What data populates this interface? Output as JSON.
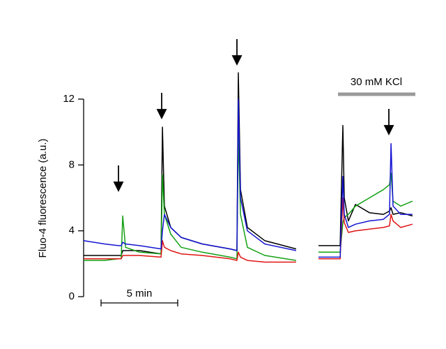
{
  "chart_data": {
    "type": "line",
    "y_label": "Fluo-4 fluorescence (a.u.)",
    "annotations": [
      "30 mM KCl",
      "5 min"
    ],
    "x": [
      0,
      1.36,
      2.27,
      2.45,
      2.55,
      2.73,
      3.64,
      5.05,
      5.14,
      5.27,
      5.68,
      6.36,
      7.73,
      9.55,
      10.0,
      10.09,
      10.23,
      10.68,
      11.82,
      13.86,
      14.6,
      15.32,
      16.73,
      16.91,
      17.0,
      17.27,
      17.73,
      18.64,
      19.55,
      19.95,
      20.05,
      20.18,
      20.68,
      21.45
    ],
    "series": [
      {
        "color": "#000000",
        "values": [
          2.5,
          2.5,
          2.5,
          2.5,
          2.8,
          2.8,
          2.8,
          2.6,
          10.3,
          5.5,
          4.2,
          3.6,
          3.2,
          2.9,
          2.8,
          13.6,
          6.5,
          4.2,
          3.4,
          2.9,
          null,
          3.1,
          3.1,
          10.4,
          6.0,
          4.6,
          5.6,
          5.1,
          5.0,
          5.2,
          5.4,
          5.0,
          5.1,
          4.9
        ]
      },
      {
        "color": "#12a012",
        "values": [
          2.2,
          2.2,
          2.3,
          2.3,
          4.9,
          3.0,
          2.7,
          2.6,
          7.4,
          5.0,
          3.8,
          3.0,
          2.7,
          2.4,
          2.3,
          10.0,
          5.0,
          3.0,
          2.5,
          2.2,
          null,
          2.7,
          2.7,
          4.5,
          4.8,
          5.0,
          5.5,
          6.0,
          6.5,
          6.8,
          7.5,
          5.8,
          5.5,
          5.8
        ]
      },
      {
        "color": "#e01414",
        "values": [
          2.3,
          2.3,
          2.3,
          2.3,
          2.5,
          2.5,
          2.5,
          2.4,
          3.4,
          3.0,
          2.8,
          2.6,
          2.5,
          2.3,
          2.2,
          2.7,
          2.4,
          2.2,
          2.1,
          2.1,
          null,
          2.3,
          2.3,
          6.0,
          4.5,
          3.9,
          4.0,
          4.1,
          4.2,
          4.3,
          5.0,
          4.6,
          4.2,
          4.4
        ]
      },
      {
        "color": "#1414d2",
        "values": [
          3.4,
          3.2,
          3.1,
          3.1,
          3.3,
          3.2,
          3.1,
          2.9,
          4.0,
          5.0,
          4.2,
          3.6,
          3.2,
          2.9,
          2.8,
          12.0,
          6.0,
          4.0,
          3.2,
          2.8,
          null,
          2.4,
          2.4,
          7.3,
          5.0,
          4.2,
          4.4,
          4.6,
          4.7,
          5.0,
          9.3,
          5.5,
          5.0,
          5.0
        ]
      }
    ],
    "ylim": [
      0,
      12
    ],
    "yticks": [
      0,
      4,
      8,
      12
    ]
  }
}
